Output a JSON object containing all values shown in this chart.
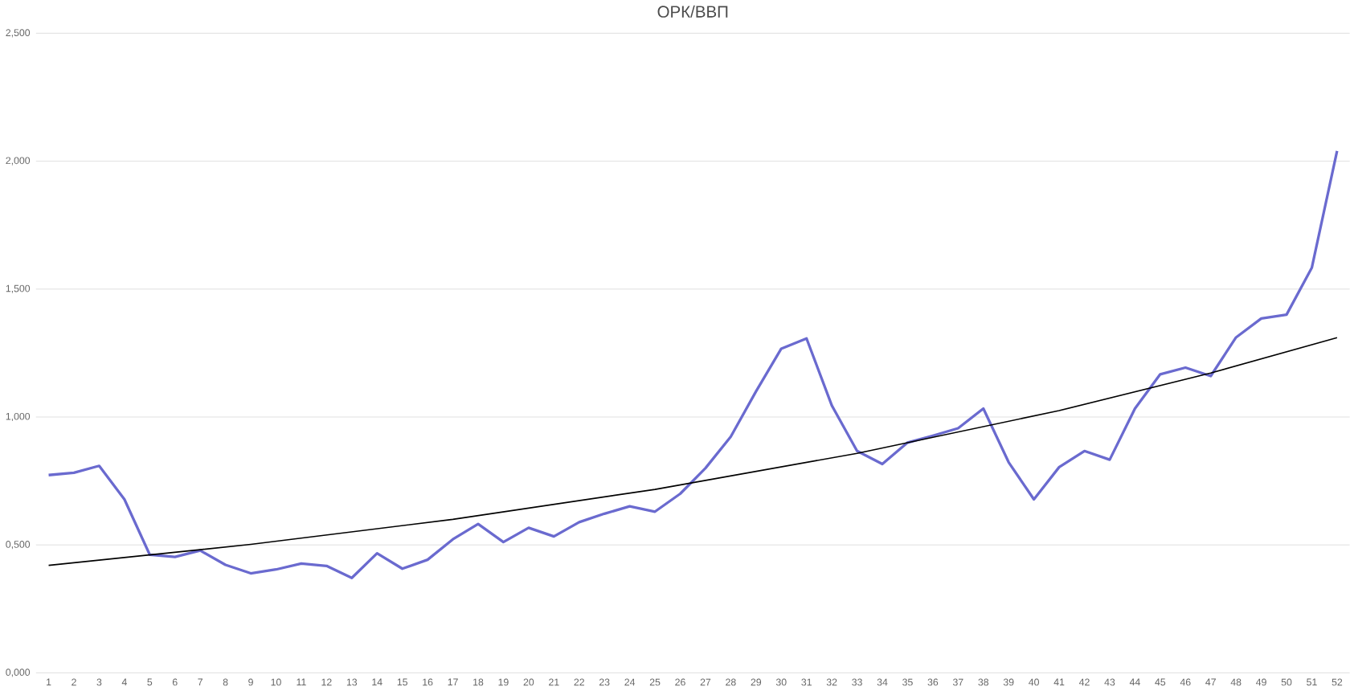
{
  "chart_data": {
    "type": "line",
    "title": "ОРК/ВВП",
    "x": [
      1,
      2,
      3,
      4,
      5,
      6,
      7,
      8,
      9,
      10,
      11,
      12,
      13,
      14,
      15,
      16,
      17,
      18,
      19,
      20,
      21,
      22,
      23,
      24,
      25,
      26,
      27,
      28,
      29,
      30,
      31,
      32,
      33,
      34,
      35,
      36,
      37,
      38,
      39,
      40,
      41,
      42,
      43,
      44,
      45,
      46,
      47,
      48,
      49,
      50,
      51,
      52
    ],
    "series": [
      {
        "color": "#6a6acf",
        "values": [
          0.773,
          0.782,
          0.809,
          0.678,
          0.462,
          0.453,
          0.478,
          0.422,
          0.389,
          0.404,
          0.427,
          0.418,
          0.371,
          0.467,
          0.407,
          0.442,
          0.522,
          0.582,
          0.511,
          0.567,
          0.533,
          0.589,
          0.622,
          0.651,
          0.63,
          0.7,
          0.8,
          0.923,
          1.1,
          1.267,
          1.307,
          1.045,
          0.867,
          0.816,
          0.9,
          0.927,
          0.956,
          1.033,
          0.823,
          0.678,
          0.804,
          0.867,
          0.833,
          1.033,
          1.167,
          1.193,
          1.16,
          1.311,
          1.385,
          1.4,
          1.583,
          2.04
        ]
      },
      {
        "type": "line",
        "color": "#000000",
        "x": [
          1,
          9,
          17,
          25,
          33,
          41,
          47,
          52
        ],
        "values": [
          0.42,
          0.502,
          0.6,
          0.717,
          0.858,
          1.025,
          1.172,
          1.31
        ]
      }
    ],
    "xlim": [
      0.5,
      52.5
    ],
    "xticks": [
      1,
      2,
      3,
      4,
      5,
      6,
      7,
      8,
      9,
      10,
      11,
      12,
      13,
      14,
      15,
      16,
      17,
      18,
      19,
      20,
      21,
      22,
      23,
      24,
      25,
      26,
      27,
      28,
      29,
      30,
      31,
      32,
      33,
      34,
      35,
      36,
      37,
      38,
      39,
      40,
      41,
      42,
      43,
      44,
      45,
      46,
      47,
      48,
      49,
      50,
      51,
      52
    ],
    "ylim": [
      0,
      2.5
    ],
    "yticks": [
      {
        "value": 0,
        "label": "0,000"
      },
      {
        "value": 0.5,
        "label": "0,500"
      },
      {
        "value": 1,
        "label": "1,000"
      },
      {
        "value": 1.5,
        "label": "1,500"
      },
      {
        "value": 2,
        "label": "2,000"
      },
      {
        "value": 2.5,
        "label": "2,500"
      }
    ],
    "grid": "y",
    "marker": "none",
    "line_style": "solid"
  }
}
